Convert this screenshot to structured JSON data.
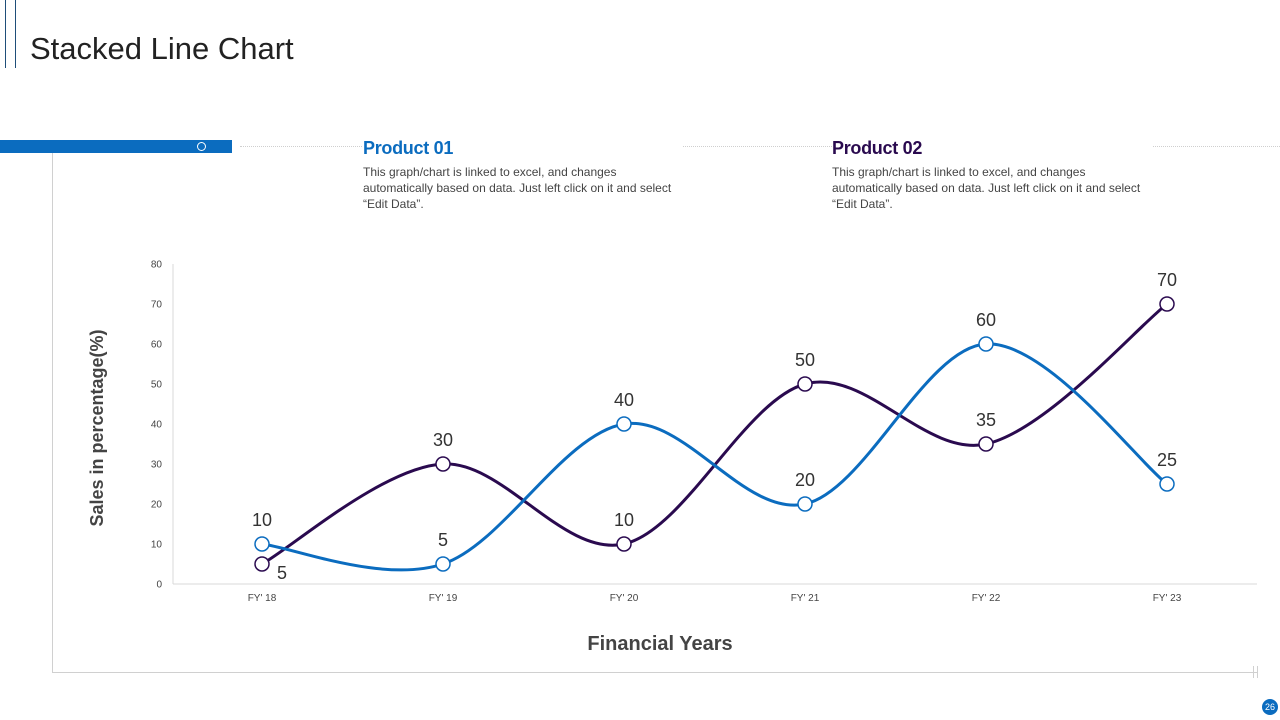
{
  "title": "Stacked Line Chart",
  "page_number": "26",
  "colors": {
    "accent": "#0b6cbf",
    "product01": "#0b6cbf",
    "product02": "#2a0a4f"
  },
  "products": [
    {
      "name": "Product 01",
      "desc": "This graph/chart is linked to excel, and changes automatically based on data. Just left click on it and select “Edit Data”."
    },
    {
      "name": "Product 02",
      "desc": "This graph/chart is linked to excel, and changes automatically based on data. Just left click on it and select “Edit Data”."
    }
  ],
  "chart_data": {
    "type": "line",
    "categories": [
      "FY' 18",
      "FY' 19",
      "FY' 20",
      "FY' 21",
      "FY' 22",
      "FY' 23"
    ],
    "series": [
      {
        "name": "Product 01",
        "values": [
          10,
          5,
          40,
          20,
          60,
          25
        ]
      },
      {
        "name": "Product 02",
        "values": [
          5,
          30,
          10,
          50,
          35,
          70
        ]
      }
    ],
    "xlabel": "Financial Years",
    "ylabel": "Sales in percentage(%)",
    "ylim": [
      0,
      80
    ],
    "yticks": [
      0,
      10,
      20,
      30,
      40,
      50,
      60,
      70,
      80
    ],
    "grid": false,
    "smooth": true
  }
}
